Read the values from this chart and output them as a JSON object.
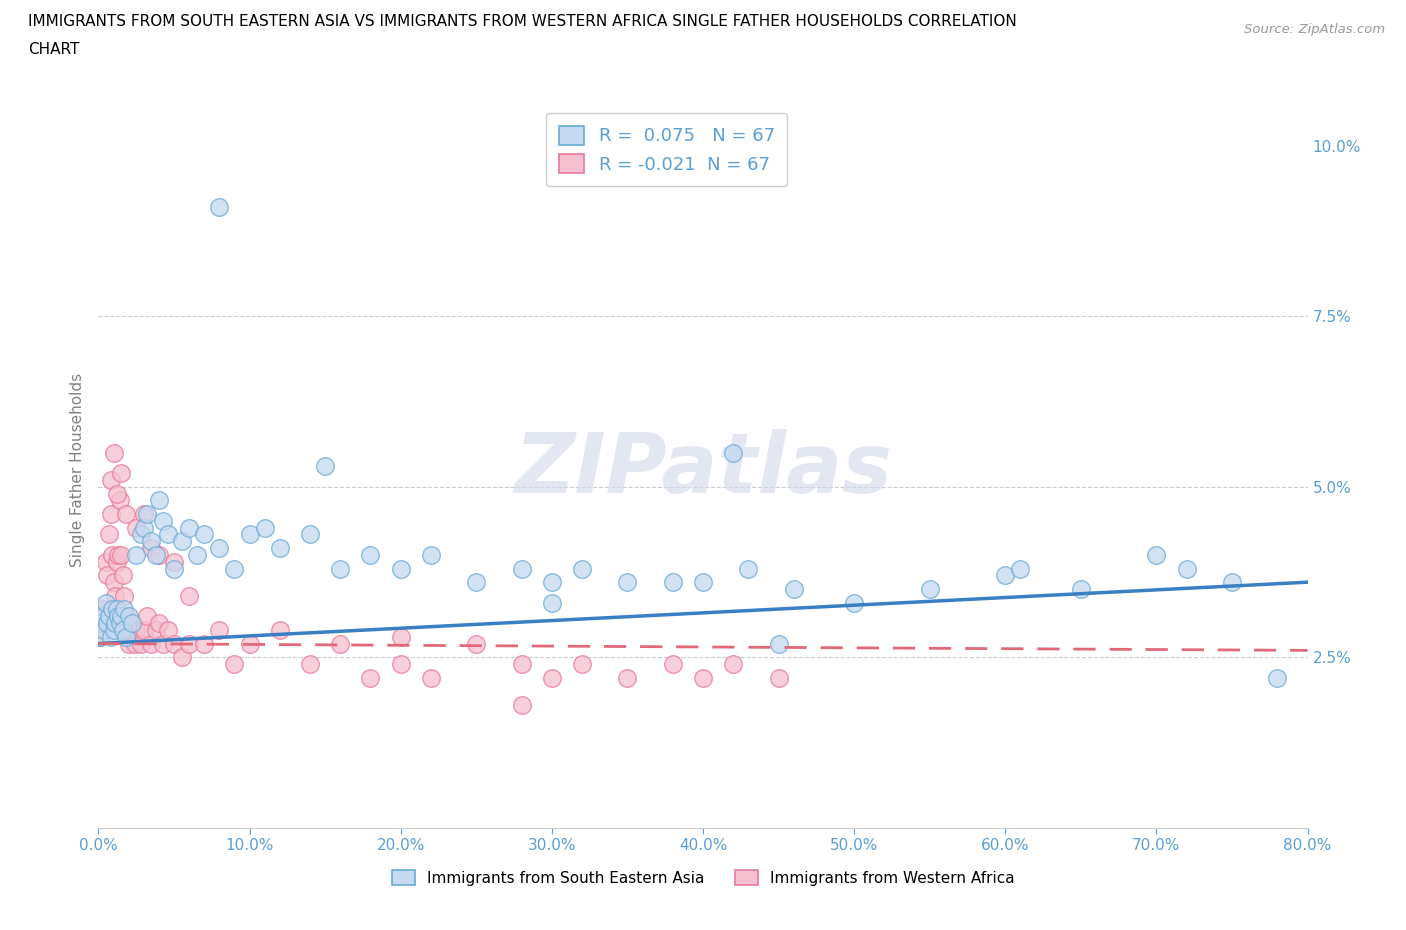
{
  "title_line1": "IMMIGRANTS FROM SOUTH EASTERN ASIA VS IMMIGRANTS FROM WESTERN AFRICA SINGLE FATHER HOUSEHOLDS CORRELATION",
  "title_line2": "CHART",
  "source": "Source: ZipAtlas.com",
  "ylabel": "Single Father Households",
  "R_blue": 0.075,
  "R_pink": -0.021,
  "N_blue": 67,
  "N_pink": 67,
  "blue_fill": "#c5d9f0",
  "pink_fill": "#f5c0d0",
  "blue_edge": "#6aaad4",
  "pink_edge": "#e87898",
  "blue_line_color": "#3a7fc4",
  "pink_line_color": "#e06878",
  "legend_label_blue": "Immigrants from South Eastern Asia",
  "legend_label_pink": "Immigrants from Western Africa",
  "xlim": [
    0.0,
    0.8
  ],
  "ylim": [
    0.0,
    0.105
  ],
  "xtick_vals": [
    0.0,
    0.1,
    0.2,
    0.3,
    0.4,
    0.5,
    0.6,
    0.7,
    0.8
  ],
  "ytick_vals": [
    0.0,
    0.025,
    0.05,
    0.075,
    0.1
  ],
  "ytick_labels": [
    "",
    "2.5%",
    "5.0%",
    "7.5%",
    "10.0%"
  ],
  "watermark": "ZIPatlas",
  "blue_trend_start": 0.027,
  "blue_trend_end": 0.036,
  "pink_trend_start": 0.027,
  "pink_trend_end": 0.026,
  "blue_x": [
    0.001,
    0.002,
    0.003,
    0.004,
    0.005,
    0.006,
    0.007,
    0.008,
    0.009,
    0.01,
    0.011,
    0.012,
    0.013,
    0.014,
    0.015,
    0.016,
    0.017,
    0.018,
    0.02,
    0.022,
    0.025,
    0.028,
    0.03,
    0.032,
    0.035,
    0.038,
    0.04,
    0.043,
    0.046,
    0.05,
    0.055,
    0.06,
    0.065,
    0.07,
    0.08,
    0.09,
    0.1,
    0.11,
    0.12,
    0.14,
    0.16,
    0.18,
    0.2,
    0.22,
    0.25,
    0.28,
    0.3,
    0.32,
    0.35,
    0.38,
    0.4,
    0.43,
    0.46,
    0.5,
    0.55,
    0.6,
    0.65,
    0.7,
    0.72,
    0.75,
    0.78,
    0.3,
    0.42,
    0.15,
    0.08,
    0.61,
    0.45
  ],
  "blue_y": [
    0.028,
    0.03,
    0.031,
    0.029,
    0.033,
    0.03,
    0.031,
    0.028,
    0.032,
    0.029,
    0.03,
    0.032,
    0.031,
    0.03,
    0.031,
    0.029,
    0.032,
    0.028,
    0.031,
    0.03,
    0.04,
    0.043,
    0.044,
    0.046,
    0.042,
    0.04,
    0.048,
    0.045,
    0.043,
    0.038,
    0.042,
    0.044,
    0.04,
    0.043,
    0.041,
    0.038,
    0.043,
    0.044,
    0.041,
    0.043,
    0.038,
    0.04,
    0.038,
    0.04,
    0.036,
    0.038,
    0.036,
    0.038,
    0.036,
    0.036,
    0.036,
    0.038,
    0.035,
    0.033,
    0.035,
    0.037,
    0.035,
    0.04,
    0.038,
    0.036,
    0.022,
    0.033,
    0.055,
    0.053,
    0.091,
    0.038,
    0.027
  ],
  "pink_x": [
    0.001,
    0.002,
    0.003,
    0.004,
    0.005,
    0.006,
    0.007,
    0.008,
    0.009,
    0.01,
    0.011,
    0.012,
    0.013,
    0.014,
    0.015,
    0.016,
    0.017,
    0.018,
    0.019,
    0.02,
    0.021,
    0.022,
    0.024,
    0.025,
    0.028,
    0.03,
    0.032,
    0.035,
    0.038,
    0.04,
    0.043,
    0.046,
    0.05,
    0.055,
    0.06,
    0.07,
    0.08,
    0.09,
    0.1,
    0.12,
    0.14,
    0.16,
    0.18,
    0.2,
    0.22,
    0.25,
    0.28,
    0.3,
    0.32,
    0.35,
    0.38,
    0.4,
    0.42,
    0.45,
    0.008,
    0.012,
    0.018,
    0.025,
    0.03,
    0.035,
    0.04,
    0.05,
    0.06,
    0.015,
    0.01,
    0.2,
    0.28
  ],
  "pink_y": [
    0.028,
    0.03,
    0.032,
    0.031,
    0.039,
    0.037,
    0.043,
    0.046,
    0.04,
    0.036,
    0.034,
    0.039,
    0.04,
    0.048,
    0.04,
    0.037,
    0.034,
    0.031,
    0.029,
    0.027,
    0.029,
    0.03,
    0.027,
    0.029,
    0.027,
    0.029,
    0.031,
    0.027,
    0.029,
    0.03,
    0.027,
    0.029,
    0.027,
    0.025,
    0.027,
    0.027,
    0.029,
    0.024,
    0.027,
    0.029,
    0.024,
    0.027,
    0.022,
    0.024,
    0.022,
    0.027,
    0.024,
    0.022,
    0.024,
    0.022,
    0.024,
    0.022,
    0.024,
    0.022,
    0.051,
    0.049,
    0.046,
    0.044,
    0.046,
    0.041,
    0.04,
    0.039,
    0.034,
    0.052,
    0.055,
    0.028,
    0.018
  ]
}
